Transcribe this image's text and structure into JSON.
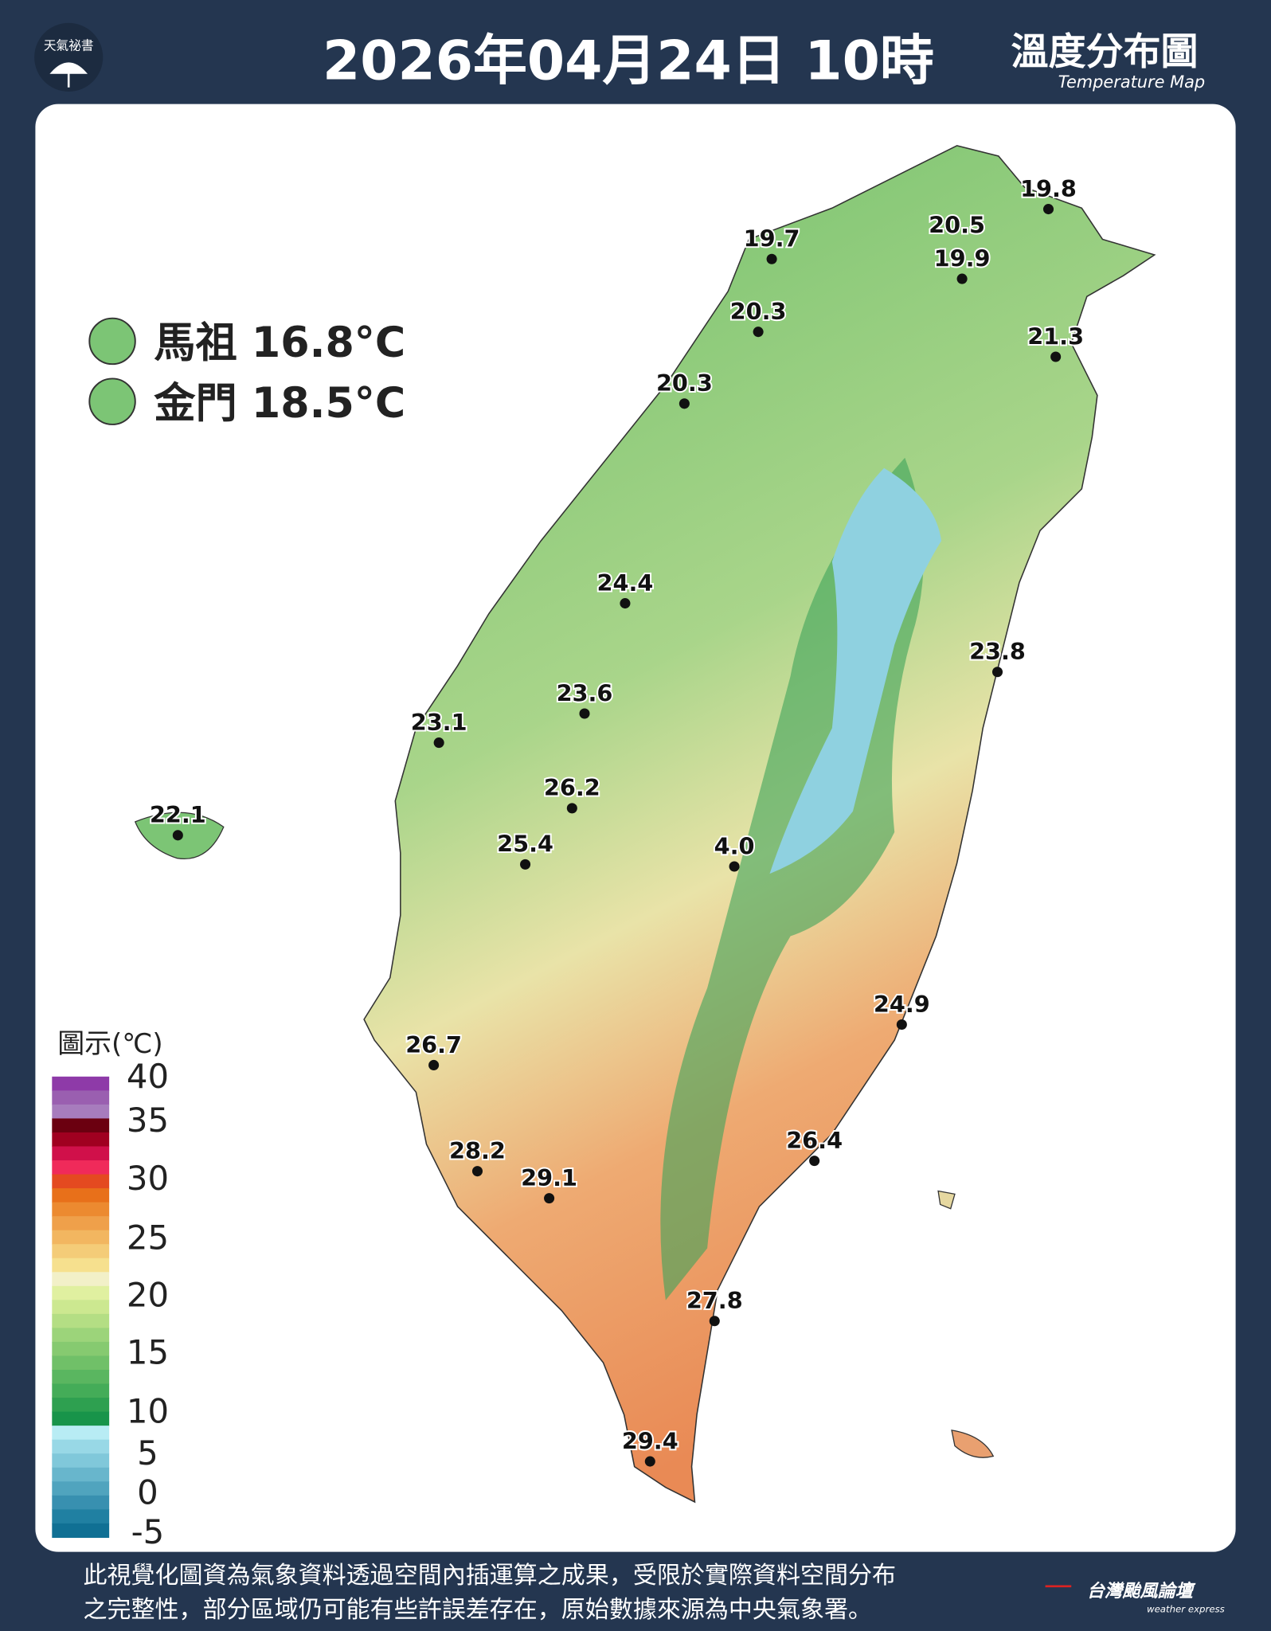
{
  "header": {
    "logo": "天氣祕書",
    "title": "2026年04月24日 10時",
    "subtitle": "溫度分布圖",
    "subtitle_en": "Temperature Map"
  },
  "islands": [
    "馬祖 16.8°C",
    "金門 18.5°C"
  ],
  "stations": [
    "19.8",
    "20.5",
    "19.9",
    "19.7",
    "20.3",
    "21.3",
    "20.3",
    "24.4",
    "23.8",
    "23.6",
    "23.1",
    "26.2",
    "22.1",
    "25.4",
    "4.0",
    "24.9",
    "26.7",
    "26.4",
    "28.2",
    "29.1",
    "27.8",
    "29.4"
  ],
  "legend": {
    "title": "圖示(℃)",
    "ticks": [
      "40",
      "35",
      "30",
      "25",
      "20",
      "15",
      "10",
      "5",
      "0",
      "-5"
    ]
  },
  "footer": {
    "lines": [
      "此視覺化圖資為氣象資料透過空間內插運算之成果，受限於實際資料空間分布",
      "之完整性，部分區域仍可能有些許誤差存在，原始數據來源為中央氣象署。"
    ],
    "brand": "台灣颱風論壇",
    "brand_en": "weather express"
  }
}
